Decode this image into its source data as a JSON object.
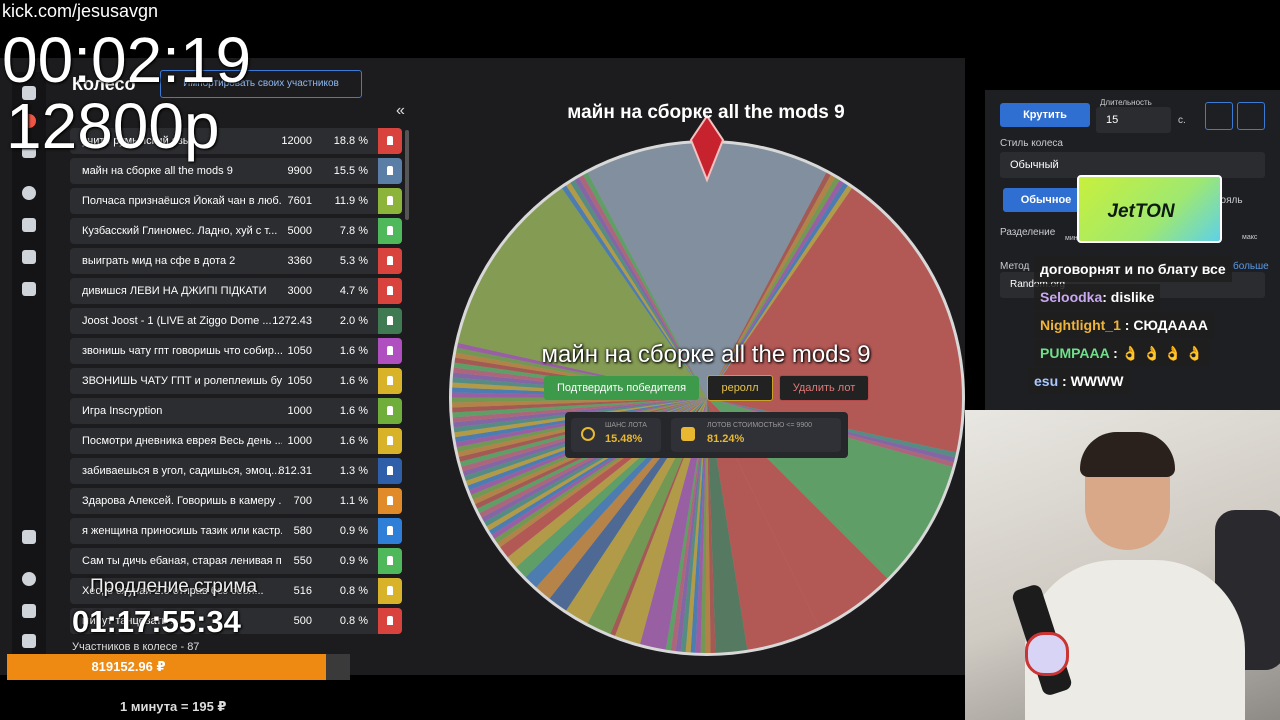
{
  "stream_overlay": {
    "url": "kick.com/jesusavgn",
    "timer": "00:02:19",
    "donations": "12800р",
    "extension_label": "Продление стрима",
    "extension_timer": "01:17:55:34",
    "progress_total": "819152.96 ₽",
    "rate": "1 минута = 195 ₽"
  },
  "app": {
    "title": "Колесо",
    "import_button": "Импортировать своих участников",
    "collapse": "«",
    "participants": "Участников в колесе - 87",
    "lots": [
      {
        "name": "учить румынский язык",
        "amount": "12000",
        "percent": "18.8 %",
        "color": "#d9433d"
      },
      {
        "name": "майн на сборке all the mods 9",
        "amount": "9900",
        "percent": "15.5 %",
        "color": "#5a7ea6"
      },
      {
        "name": "Полчаса признаёшся Йокай чан в люб...",
        "amount": "7601",
        "percent": "11.9 %",
        "color": "#8cb43a"
      },
      {
        "name": "Кузбасский Глиномес. Ладно, хуй с т...",
        "amount": "5000",
        "percent": "7.8 %",
        "color": "#4fb85a"
      },
      {
        "name": "выиграть мид на сфе в дота 2",
        "amount": "3360",
        "percent": "5.3 %",
        "color": "#d9433d"
      },
      {
        "name": "дивишся ЛЕВИ НА ДЖИПІ ПІДКАТИ",
        "amount": "3000",
        "percent": "4.7 %",
        "color": "#d9433d"
      },
      {
        "name": "Joost Joost - 1 (LIVE at Ziggo Dome ...",
        "amount": "1272.43",
        "percent": "2.0 %",
        "color": "#3f7a52"
      },
      {
        "name": "звонишь чату гпт говоришь что собир...",
        "amount": "1050",
        "percent": "1.6 %",
        "color": "#b04fc0"
      },
      {
        "name": "ЗВОНИШЬ ЧАТУ ГПТ и ролеплеишь бу...",
        "amount": "1050",
        "percent": "1.6 %",
        "color": "#d8b32a"
      },
      {
        "name": "Игра Inscryption",
        "amount": "1000",
        "percent": "1.6 %",
        "color": "#6fae3a"
      },
      {
        "name": "Посмотри дневника еврея Весь день ...",
        "amount": "1000",
        "percent": "1.6 %",
        "color": "#d8b32a"
      },
      {
        "name": "забиваешься в угол, садишься, эмоц...",
        "amount": "812.31",
        "percent": "1.3 %",
        "color": "#2f5fa8"
      },
      {
        "name": "Здарова Алексей. Говоришь в камеру ...",
        "amount": "700",
        "percent": "1.1 %",
        "color": "#e08a2a"
      },
      {
        "name": "я женщина приносишь тазик или кастр...",
        "amount": "580",
        "percent": "0.9 %",
        "color": "#2f7fd8"
      },
      {
        "name": "Сам ты дичь ебаная, старая ленивая п...",
        "amount": "550",
        "percent": "0.9 %",
        "color": "#4fb85a"
      },
      {
        "name": "Хес, в случаи 2.0 отправ без себя...",
        "amount": "516",
        "percent": "0.8 %",
        "color": "#d8b32a"
      },
      {
        "name": "минут танцевать ...",
        "amount": "500",
        "percent": "0.8 %",
        "color": "#d9433d"
      }
    ],
    "wheel": {
      "title": "майн на сборке all the mods 9",
      "winner": "майн на сборке all the mods 9",
      "confirm": "Подтвердить победителя",
      "reroll": "реролл",
      "delete": "Удалить лот",
      "chance_label": "ШАНС ЛОТА",
      "chance": "15.48%",
      "cheaper_label": "ЛОТОВ СТОИМОСТЬЮ <= 9900",
      "cheaper": "81.24%"
    },
    "settings": {
      "spin": "Крутить",
      "duration_label": "Длительность",
      "duration": "15",
      "unit": "с.",
      "style_label": "Стиль колеса",
      "style": "Обычный",
      "mode_a": "Обычное",
      "mode_b": "рояль",
      "split_label": "Разделение",
      "min": "мин",
      "max": "макс",
      "method_label": "Метод",
      "more": "больше",
      "method": "Random.org"
    }
  },
  "ad": {
    "brand": "JetTON"
  },
  "chat": [
    {
      "user": "",
      "text": "договорнят и по блату все",
      "color": "#ffffff"
    },
    {
      "user": "Seloodka",
      "text": ": dislike",
      "color": "#c9a8f0"
    },
    {
      "user": "Nightlight_1",
      "text": " : СЮДАААА",
      "color": "#f0b43a"
    },
    {
      "user": "PUMPAAA",
      "text": " : 👌 👌 👌 👌",
      "color": "#6fe08a"
    },
    {
      "user": "esu",
      "text": " : WWWW",
      "color": "#a8c8ff"
    }
  ]
}
